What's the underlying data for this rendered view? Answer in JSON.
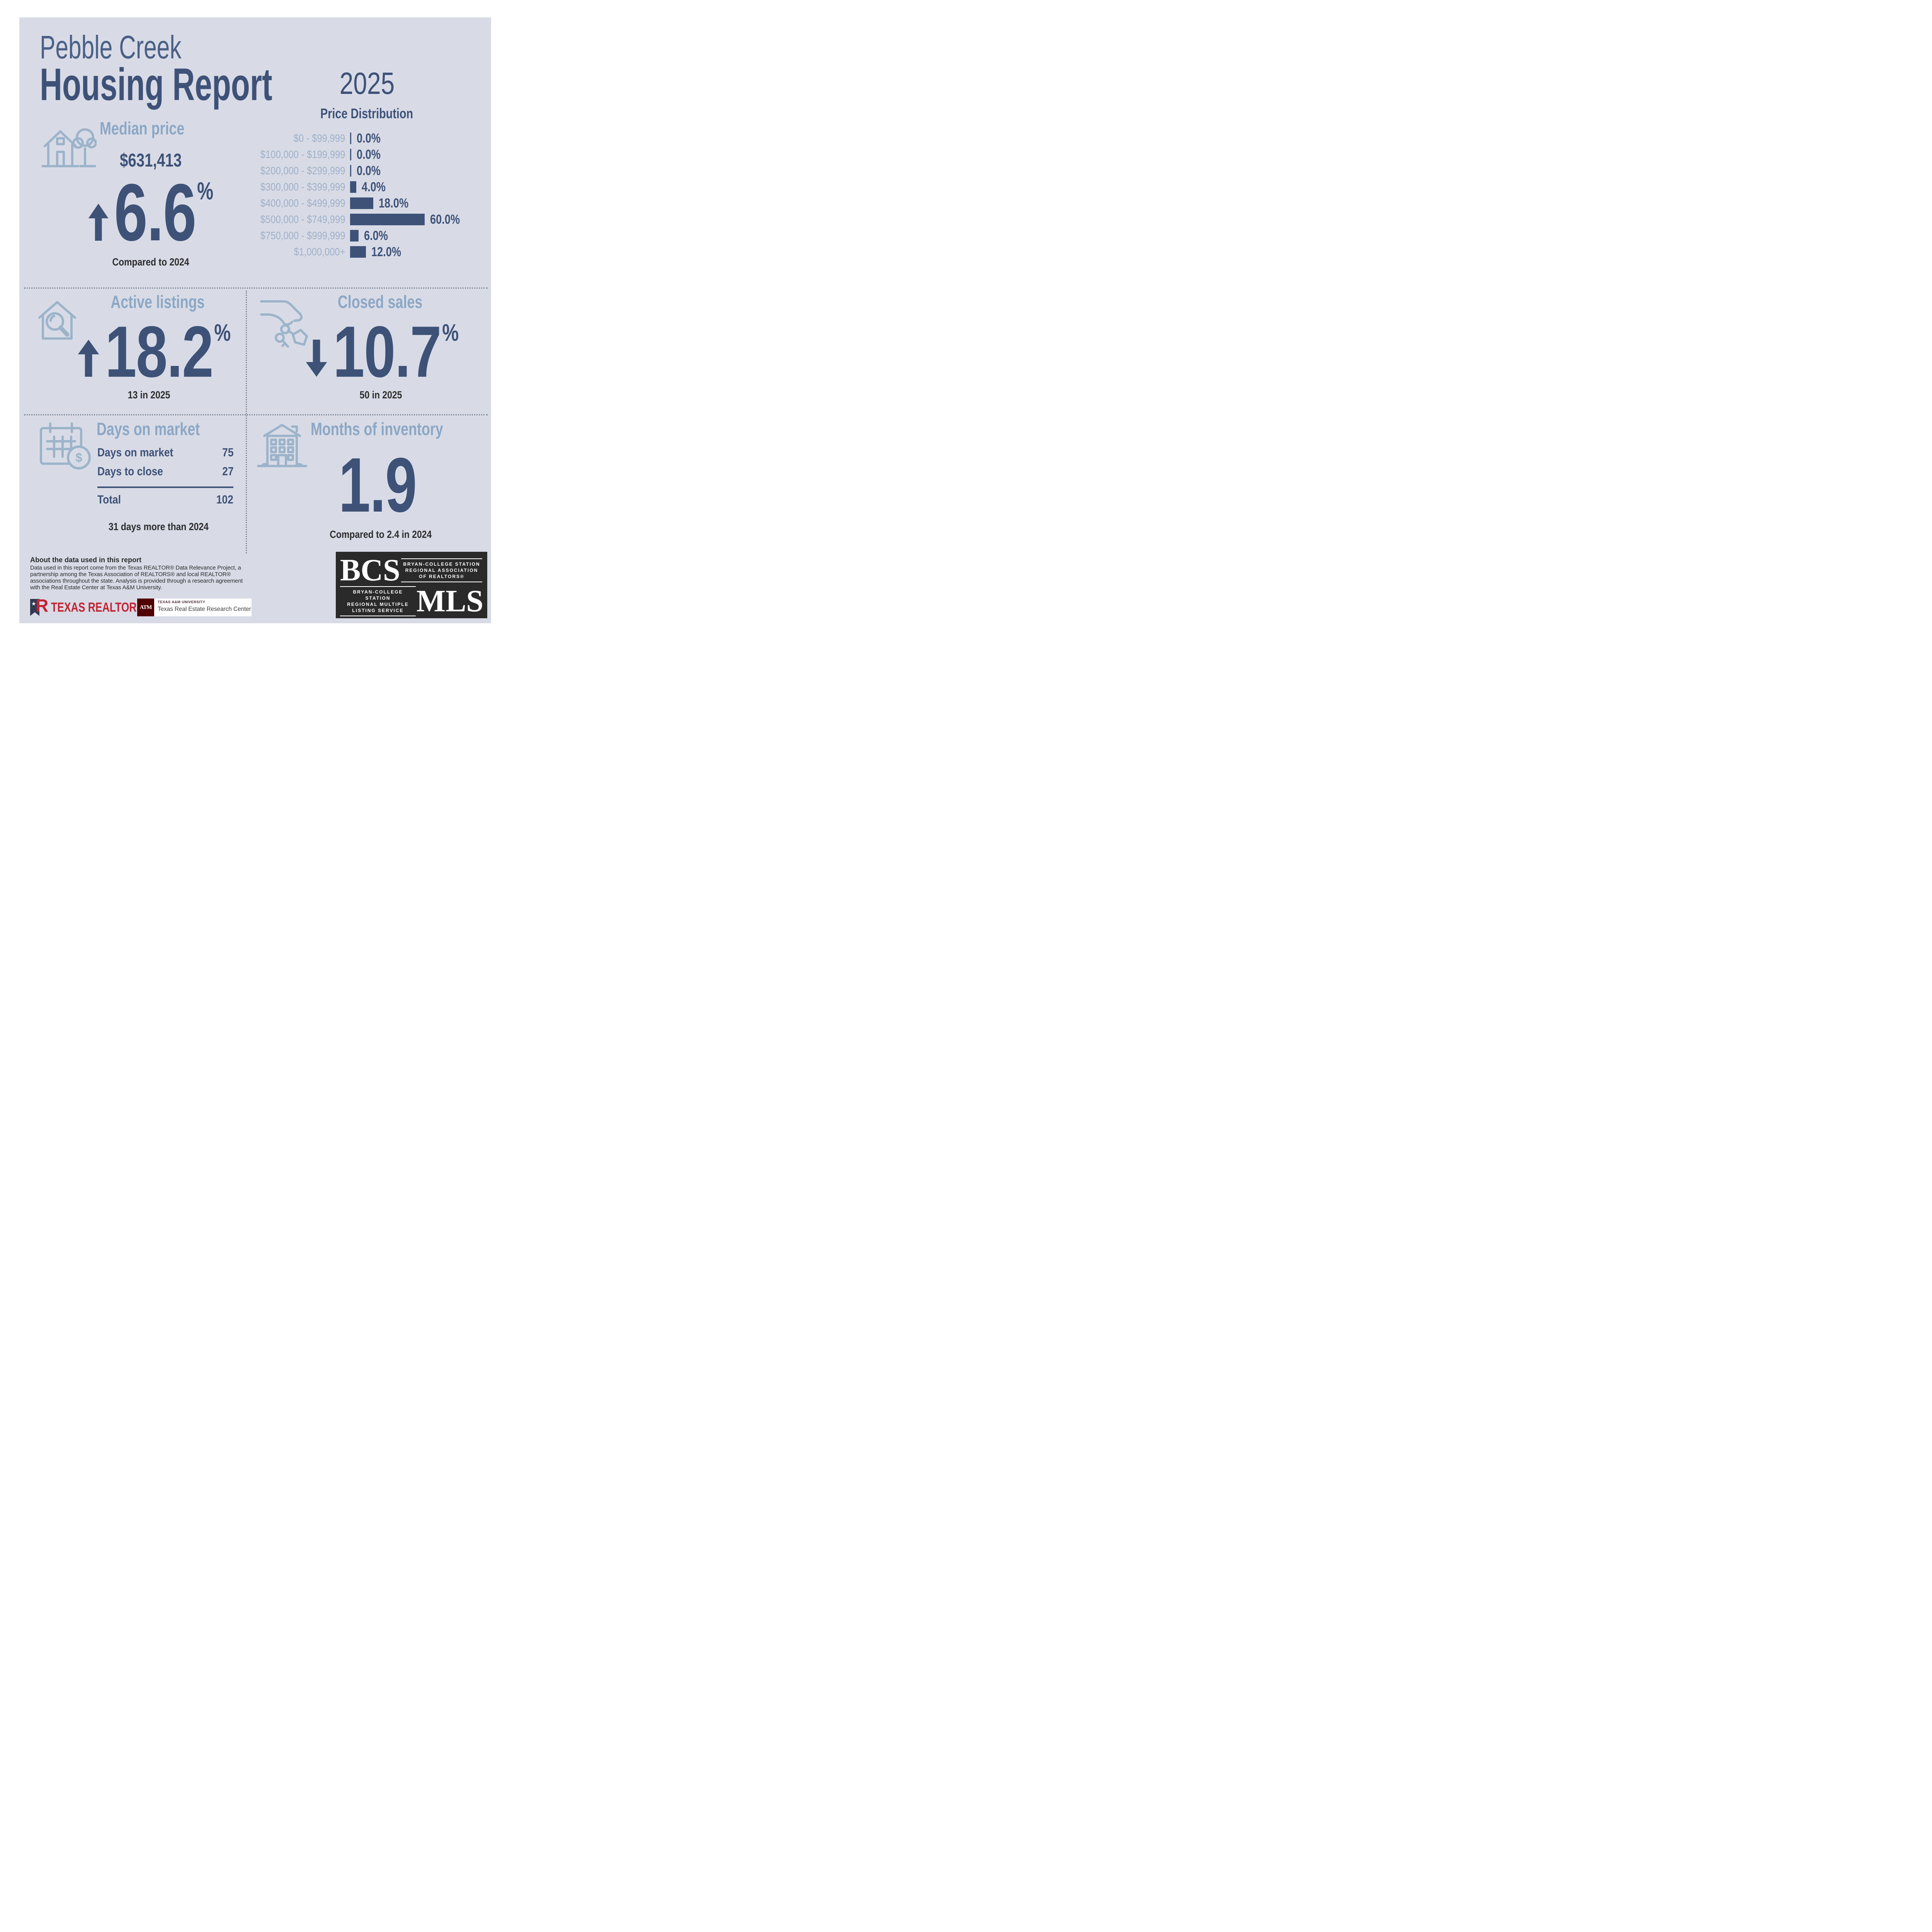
{
  "report": {
    "community": "Pebble Creek",
    "title": "Housing Report",
    "year": "2025"
  },
  "chart_data": {
    "type": "bar",
    "title": "Price Distribution",
    "orientation": "horizontal",
    "categories": [
      "$0 - $99,999",
      "$100,000 - $199,999",
      "$200,000 - $299,999",
      "$300,000 - $399,999",
      "$400,000 - $499,999",
      "$500,000 - $749,999",
      "$750,000 - $999,999",
      "$1,000,000+"
    ],
    "values": [
      0.0,
      0.0,
      0.0,
      4.0,
      18.0,
      60.0,
      6.0,
      12.0
    ],
    "value_labels": [
      "0.0%",
      "0.0%",
      "0.0%",
      "4.0%",
      "18.0%",
      "60.0%",
      "6.0%",
      "12.0%"
    ],
    "unit": "%",
    "xlim": [
      0,
      60
    ],
    "grid": false,
    "legend": false
  },
  "median_price": {
    "title": "Median price",
    "icon": "house-with-tree-icon",
    "value": "$631,413",
    "change": "6.6",
    "pct": "%",
    "direction": "up",
    "caption": "Compared to 2024"
  },
  "active_listings": {
    "title": "Active listings",
    "icon": "house-with-magnifier-icon",
    "change": "18.2",
    "pct": "%",
    "direction": "up",
    "caption": "13 in 2025"
  },
  "closed_sales": {
    "title": "Closed sales",
    "icon": "hand-with-keys-icon",
    "change": "10.7",
    "pct": "%",
    "direction": "down",
    "caption": "50 in 2025"
  },
  "days_on_market": {
    "title": "Days on market",
    "icon": "calendar-with-coin-icon",
    "rows": [
      {
        "label": "Days on market",
        "value": "75"
      },
      {
        "label": "Days to close",
        "value": "27"
      }
    ],
    "total_label": "Total",
    "total_value": "102",
    "caption": "31 days more than 2024"
  },
  "months_of_inventory": {
    "title": "Months of inventory",
    "icon": "apartment-building-icon",
    "value": "1.9",
    "caption": "Compared to 2.4 in 2024"
  },
  "about": {
    "title": "About the data used in this report",
    "body": "Data used in this report come from the Texas REALTOR® Data Relevance Project, a partnership among the Texas Association of REALTORS® and local REALTOR® associations throughout the state. Analysis is provided through a research agreement with the Real Estate Center at Texas A&M University."
  },
  "logos": {
    "texas_realtors": {
      "text": "TEXAS REALTORS",
      "reg": "®",
      "star": "★"
    },
    "tamu": {
      "monogram": "ATM",
      "line1": "TEXAS A&M UNIVERSITY",
      "line2": "Texas Real Estate Research Center"
    },
    "bcs_mls": {
      "bcs": "BCS",
      "mls": "MLS",
      "assoc_lines": [
        "BRYAN-COLLEGE STATION",
        "REGIONAL ASSOCIATION",
        "OF REALTORS®"
      ],
      "mls_lines": [
        "BRYAN-COLLEGE STATION",
        "REGIONAL MULTIPLE",
        "LISTING SERVICE"
      ]
    }
  },
  "colors": {
    "navy": "#3e5278",
    "panel": "#d8dbe6",
    "light_title": "#8ca7c5",
    "icon": "#9cb4ca",
    "label": "#9fb0c8",
    "dark_text": "#2c2c2c",
    "divider": "#7e8696",
    "tr_red": "#c22433",
    "tr_navy": "#2f3b52",
    "am_maroon": "#500000",
    "bcs_bg": "#2b2a2a"
  }
}
